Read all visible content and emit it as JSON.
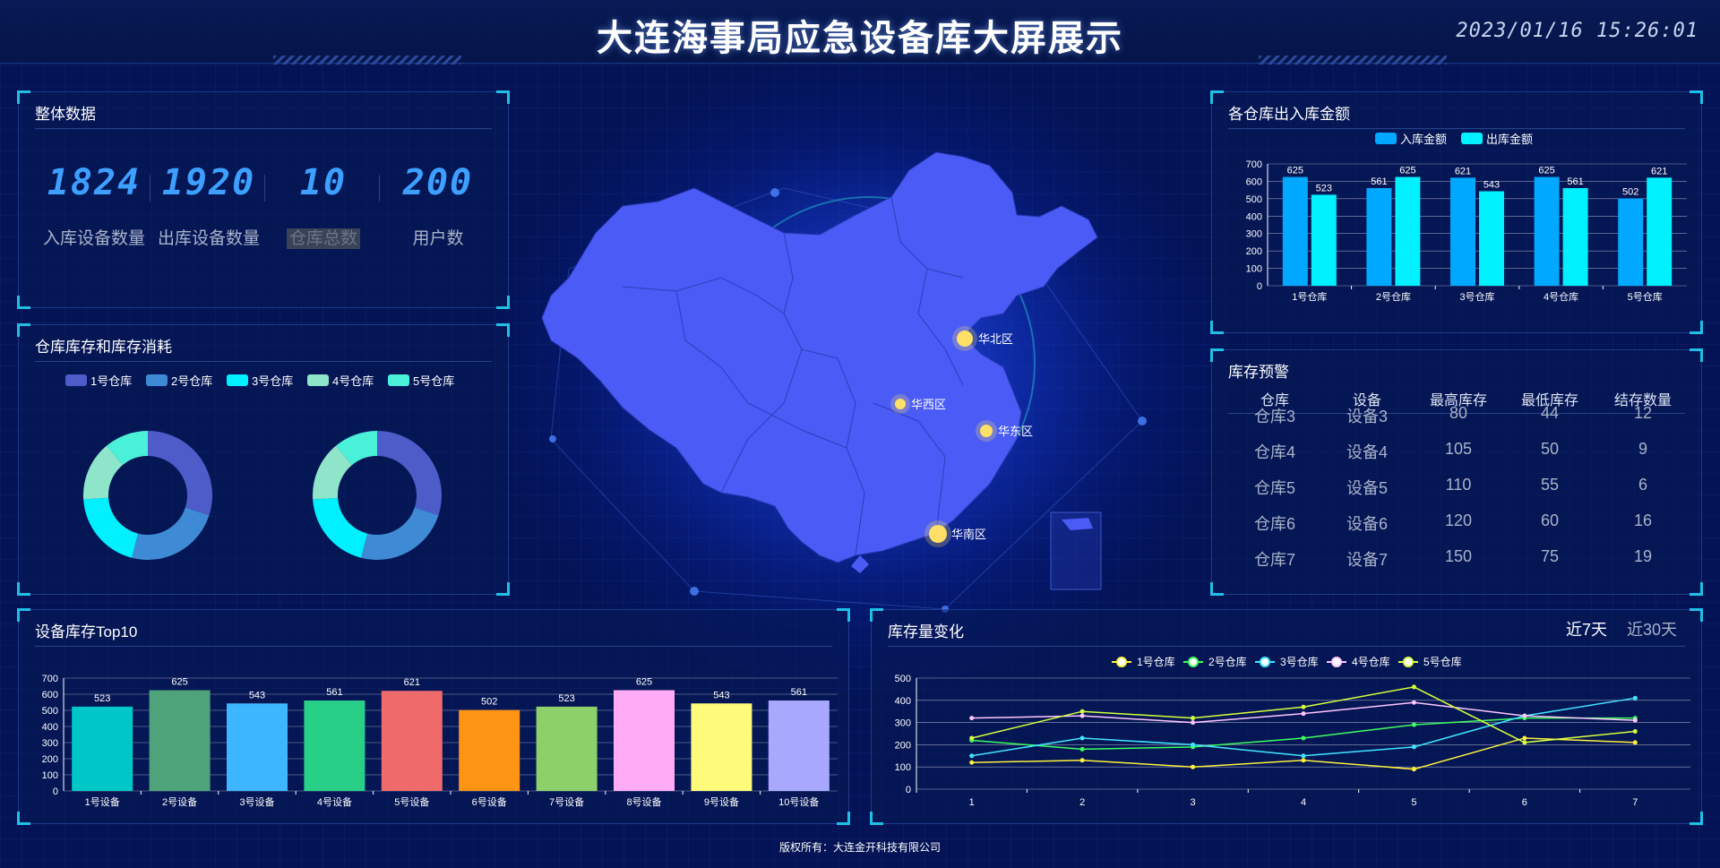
{
  "header": {
    "title": "大连海事局应急设备库大屏展示",
    "datetime": "2023/01/16 15:26:01"
  },
  "overall": {
    "title": "整体数据",
    "stats": [
      {
        "value": "1824",
        "label": "入库设备数量"
      },
      {
        "value": "1920",
        "label": "出库设备数量"
      },
      {
        "value": "10",
        "label": "仓库总数"
      },
      {
        "value": "200",
        "label": "用户数"
      }
    ]
  },
  "stock_consumption": {
    "title": "仓库库存和库存消耗",
    "legend": [
      "1号仓库",
      "2号仓库",
      "3号仓库",
      "4号仓库",
      "5号仓库"
    ],
    "colors": [
      "#4d5cc8",
      "#3f8ad4",
      "#00f0ff",
      "#8fe5c9",
      "#4af0d8"
    ],
    "chart_data": [
      {
        "type": "pie",
        "donut": true,
        "labels": [
          "1号仓库",
          "2号仓库",
          "3号仓库",
          "4号仓库",
          "5号仓库"
        ],
        "values": [
          30,
          24,
          20,
          15,
          11
        ]
      },
      {
        "type": "pie",
        "donut": true,
        "labels": [
          "1号仓库",
          "2号仓库",
          "3号仓库",
          "4号仓库",
          "5号仓库"
        ],
        "values": [
          30,
          24,
          20,
          15,
          11
        ]
      }
    ]
  },
  "map": {
    "markers": [
      "华北区",
      "华西区",
      "华东区",
      "华南区"
    ]
  },
  "amount": {
    "title": "各仓库出入库金额",
    "chart_data": {
      "type": "bar",
      "categories": [
        "1号仓库",
        "2号仓库",
        "3号仓库",
        "4号仓库",
        "5号仓库"
      ],
      "series": [
        {
          "name": "入库金额",
          "values": [
            625,
            561,
            621,
            625,
            502
          ],
          "color": "#00a8ff"
        },
        {
          "name": "出库金额",
          "values": [
            523,
            625,
            543,
            561,
            621
          ],
          "color": "#00f0ff"
        }
      ],
      "ylim": [
        0,
        700
      ],
      "yticks": [
        0,
        100,
        200,
        300,
        400,
        500,
        600,
        700
      ]
    }
  },
  "warning": {
    "title": "库存预警",
    "headers": [
      "仓库",
      "设备",
      "最高库存",
      "最低库存",
      "结存数量"
    ],
    "partial_row": [
      "仓库3",
      "设备3",
      "80",
      "44",
      "12"
    ],
    "rows": [
      [
        "仓库4",
        "设备4",
        "105",
        "50",
        "9"
      ],
      [
        "仓库5",
        "设备5",
        "110",
        "55",
        "6"
      ],
      [
        "仓库6",
        "设备6",
        "120",
        "60",
        "16"
      ],
      [
        "仓库7",
        "设备7",
        "150",
        "75",
        "19"
      ]
    ]
  },
  "top10": {
    "title": "设备库存Top10",
    "chart_data": {
      "type": "bar",
      "categories": [
        "1号设备",
        "2号设备",
        "3号设备",
        "4号设备",
        "5号设备",
        "6号设备",
        "7号设备",
        "8号设备",
        "9号设备",
        "10号设备"
      ],
      "values": [
        523,
        625,
        543,
        561,
        621,
        502,
        523,
        625,
        543,
        561
      ],
      "colors": [
        "#00c7c7",
        "#4fa37b",
        "#3eb6ff",
        "#28d087",
        "#ef6a6a",
        "#ff9415",
        "#8dd06a",
        "#ffabf6",
        "#fffb7a",
        "#a8a8ff"
      ],
      "ylim": [
        0,
        700
      ],
      "yticks": [
        0,
        100,
        200,
        300,
        400,
        500,
        600,
        700
      ]
    }
  },
  "trend": {
    "title": "库存量变化",
    "tabs": [
      "近7天",
      "近30天"
    ],
    "chart_data": {
      "type": "line",
      "x": [
        1,
        2,
        3,
        4,
        5,
        6,
        7
      ],
      "series": [
        {
          "name": "1号仓库",
          "values": [
            120,
            130,
            100,
            130,
            90,
            230,
            210
          ],
          "color": "#fff23c"
        },
        {
          "name": "2号仓库",
          "values": [
            220,
            180,
            190,
            230,
            290,
            320,
            320
          ],
          "color": "#3cff5e"
        },
        {
          "name": "3号仓库",
          "values": [
            150,
            230,
            200,
            150,
            190,
            330,
            410
          ],
          "color": "#40e6ff"
        },
        {
          "name": "4号仓库",
          "values": [
            320,
            330,
            300,
            340,
            390,
            330,
            310
          ],
          "color": "#ffc6ff"
        },
        {
          "name": "5号仓库",
          "values": [
            230,
            350,
            320,
            370,
            460,
            210,
            260
          ],
          "color": "#d6ff3c"
        }
      ],
      "ylim": [
        0,
        500
      ],
      "yticks": [
        0,
        100,
        200,
        300,
        400,
        500
      ]
    }
  },
  "footer": {
    "text": "版权所有：大连金开科技有限公司"
  }
}
